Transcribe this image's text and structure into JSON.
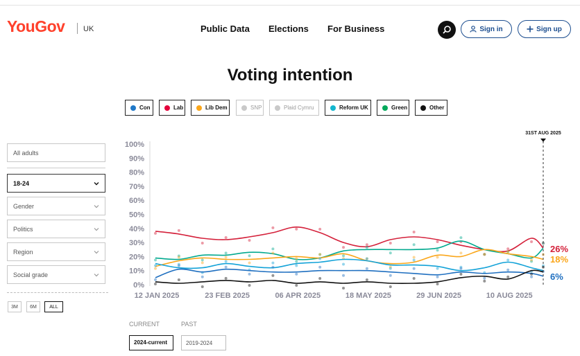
{
  "header": {
    "logo": "YouGov",
    "region": "UK",
    "nav": [
      "Public Data",
      "Elections",
      "For Business"
    ],
    "sign_in": "Sign in",
    "sign_up": "Sign up"
  },
  "page_title": "Voting intention",
  "legend": [
    {
      "label": "Con",
      "color": "#1f78c8",
      "active": true
    },
    {
      "label": "Lab",
      "color": "#e4003b",
      "active": true
    },
    {
      "label": "Lib Dem",
      "color": "#faa61a",
      "active": true
    },
    {
      "label": "SNP",
      "color": "#c9c9c9",
      "active": false
    },
    {
      "label": "Plaid Cymru",
      "color": "#c9c9c9",
      "active": false
    },
    {
      "label": "Reform UK",
      "color": "#12b6cf",
      "active": true
    },
    {
      "label": "Green",
      "color": "#02a95b",
      "active": true
    },
    {
      "label": "Other",
      "color": "#111111",
      "active": true
    }
  ],
  "filters": {
    "population": "All adults",
    "age": "18-24",
    "gender": "Gender",
    "politics": "Politics",
    "region": "Region",
    "social_grade": "Social grade"
  },
  "ranges": [
    "3M",
    "6M",
    "ALL"
  ],
  "tabs": {
    "current_label": "CURRENT",
    "past_label": "PAST",
    "current_value": "2024-current",
    "past_value": "2019-2024"
  },
  "chart_data": {
    "type": "line",
    "y_ticks": [
      "100%",
      "90%",
      "80%",
      "70%",
      "60%",
      "50%",
      "40%",
      "30%",
      "20%",
      "10%",
      "0%"
    ],
    "ylim": [
      0,
      100
    ],
    "x_tick_labels": [
      "12 JAN 2025",
      "23 FEB 2025",
      "06 APR 2025",
      "18 MAY 2025",
      "29 JUN 2025",
      "10 AUG 2025"
    ],
    "x_ticks": [
      "2025-01-12",
      "2025-02-23",
      "2025-04-06",
      "2025-05-18",
      "2025-06-29",
      "2025-08-10"
    ],
    "x_range": [
      "2025-01-12",
      "2025-08-31"
    ],
    "marker_label": "31ST AUG 2025",
    "marker_date": "2025-08-31",
    "dates": [
      "2025-01-12",
      "2025-01-26",
      "2025-02-09",
      "2025-02-23",
      "2025-03-09",
      "2025-03-23",
      "2025-04-06",
      "2025-04-20",
      "2025-05-04",
      "2025-05-18",
      "2025-06-01",
      "2025-06-15",
      "2025-06-29",
      "2025-07-13",
      "2025-07-27",
      "2025-08-10",
      "2025-08-24",
      "2025-08-31"
    ],
    "series": [
      {
        "name": "Lab",
        "color": "#d4203a",
        "values": [
          38,
          36,
          33,
          32,
          34,
          37,
          41,
          37,
          30,
          27,
          32,
          34,
          32,
          28,
          25,
          24,
          33,
          26
        ],
        "end_label": "26%"
      },
      {
        "name": "Green",
        "color": "#02a98f",
        "values": [
          19,
          18,
          21,
          21,
          23,
          22,
          18,
          19,
          24,
          25,
          25,
          25,
          26,
          31,
          25,
          22,
          19,
          26
        ],
        "end_label": ""
      },
      {
        "name": "Lib Dem",
        "color": "#faa61a",
        "values": [
          13,
          17,
          19,
          18,
          18,
          19,
          20,
          19,
          22,
          17,
          15,
          16,
          21,
          20,
          25,
          22,
          20,
          18
        ],
        "end_label": "18%"
      },
      {
        "name": "Reform UK",
        "color": "#12a2d8",
        "values": [
          15,
          12,
          12,
          15,
          13,
          12,
          15,
          16,
          18,
          17,
          14,
          14,
          13,
          10,
          12,
          16,
          12,
          10
        ],
        "end_label": ""
      },
      {
        "name": "Con",
        "color": "#1f6fc0",
        "values": [
          5,
          11,
          9,
          11,
          10,
          9,
          9,
          10,
          10,
          10,
          9,
          8,
          7,
          9,
          8,
          9,
          8,
          6
        ],
        "end_label": "6%"
      },
      {
        "name": "Other",
        "color": "#111111",
        "values": [
          2,
          1,
          2,
          3,
          2,
          3,
          1,
          2,
          1,
          2,
          1,
          1,
          2,
          5,
          6,
          4,
          10,
          9
        ],
        "end_label": ""
      }
    ]
  }
}
